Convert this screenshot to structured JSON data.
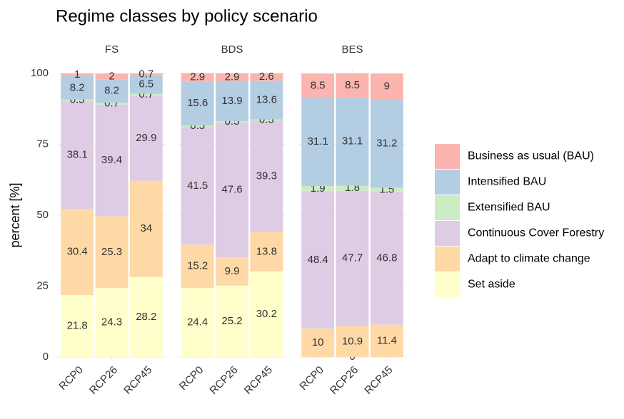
{
  "chart_data": {
    "type": "stacked-bar",
    "title": "Regime classes by policy scenario",
    "ylabel": "percent [%]",
    "ylim": [
      0,
      100
    ],
    "yticks": [
      0,
      25,
      50,
      75,
      100
    ],
    "grid": true,
    "legend": "right",
    "series": [
      {
        "name": "Set aside",
        "color": "#ffffcc"
      },
      {
        "name": "Adapt to climate change",
        "color": "#fed9a6"
      },
      {
        "name": "Continuous Cover Forestry",
        "color": "#decbe4"
      },
      {
        "name": "Extensified BAU",
        "color": "#ccebc5"
      },
      {
        "name": "Intensified BAU",
        "color": "#b3cde3"
      },
      {
        "name": "Business as usual (BAU)",
        "color": "#fbb4ae"
      }
    ],
    "facets": [
      {
        "title": "FS",
        "categories": [
          "RCP0",
          "RCP26",
          "RCP45"
        ],
        "values": [
          [
            21.8,
            24.3,
            28.2
          ],
          [
            30.4,
            25.3,
            34
          ],
          [
            38.1,
            39.4,
            29.9
          ],
          [
            0.5,
            0.7,
            0.7
          ],
          [
            8.2,
            8.2,
            6.5
          ],
          [
            1,
            2,
            0.7
          ]
        ]
      },
      {
        "title": "BDS",
        "categories": [
          "RCP0",
          "RCP26",
          "RCP45"
        ],
        "values": [
          [
            24.4,
            25.2,
            30.2
          ],
          [
            15.2,
            9.9,
            13.8
          ],
          [
            41.5,
            47.6,
            39.3
          ],
          [
            0.5,
            0.5,
            0.5
          ],
          [
            15.6,
            13.9,
            13.6
          ],
          [
            2.9,
            2.9,
            2.6
          ]
        ]
      },
      {
        "title": "BES",
        "categories": [
          "RCP0",
          "RCP26",
          "RCP45"
        ],
        "values": [
          [
            null,
            0,
            null
          ],
          [
            10,
            10.9,
            11.4
          ],
          [
            48.4,
            47.7,
            46.8
          ],
          [
            1.9,
            1.8,
            1.5
          ],
          [
            31.1,
            31.1,
            31.2
          ],
          [
            8.5,
            8.5,
            9
          ]
        ]
      }
    ]
  }
}
